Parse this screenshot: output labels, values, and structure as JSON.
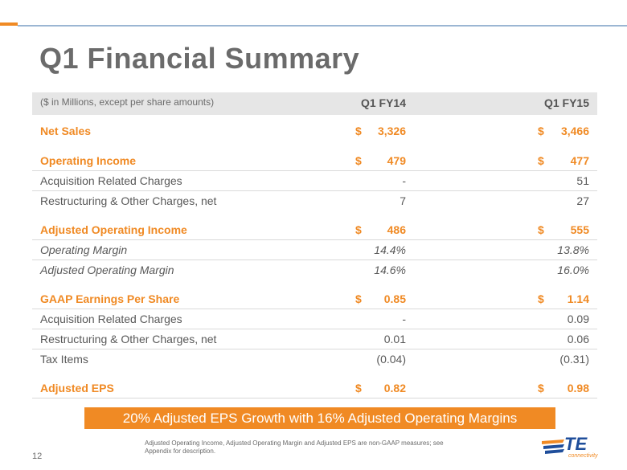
{
  "title": "Q1 Financial Summary",
  "table": {
    "note": "($ in Millions, except per share amounts)",
    "col1": "Q1 FY14",
    "col2": "Q1 FY15",
    "rows": [
      {
        "label": "Net Sales",
        "c1_dollar": "$",
        "c1": "3,326",
        "c2_dollar": "$",
        "c2": "3,466"
      },
      {
        "label": "Operating Income",
        "c1_dollar": "$",
        "c1": "479",
        "c2_dollar": "$",
        "c2": "477"
      },
      {
        "label": "Acquisition Related Charges",
        "c1_dollar": "",
        "c1": "-",
        "c2_dollar": "",
        "c2": "51"
      },
      {
        "label": "Restructuring & Other Charges, net",
        "c1_dollar": "",
        "c1": "7",
        "c2_dollar": "",
        "c2": "27"
      },
      {
        "label": "Adjusted Operating Income",
        "c1_dollar": "$",
        "c1": "486",
        "c2_dollar": "$",
        "c2": "555"
      },
      {
        "label": "Operating Margin",
        "c1_dollar": "",
        "c1": "14.4%",
        "c2_dollar": "",
        "c2": "13.8%"
      },
      {
        "label": "Adjusted Operating Margin",
        "c1_dollar": "",
        "c1": "14.6%",
        "c2_dollar": "",
        "c2": "16.0%"
      },
      {
        "label": "GAAP Earnings Per Share",
        "c1_dollar": "$",
        "c1": "0.85",
        "c2_dollar": "$",
        "c2": "1.14"
      },
      {
        "label": "Acquisition Related Charges",
        "c1_dollar": "",
        "c1": "-",
        "c2_dollar": "",
        "c2": "0.09"
      },
      {
        "label": "Restructuring & Other Charges, net",
        "c1_dollar": "",
        "c1": "0.01",
        "c2_dollar": "",
        "c2": "0.06"
      },
      {
        "label": "Tax Items",
        "c1_dollar": "",
        "c1": "(0.04)",
        "c2_dollar": "",
        "c2": "(0.31)"
      },
      {
        "label": "Adjusted EPS",
        "c1_dollar": "$",
        "c1": "0.82",
        "c2_dollar": "$",
        "c2": "0.98"
      }
    ]
  },
  "callout": "20% Adjusted EPS Growth with 16% Adjusted Operating Margins",
  "page_number": "12",
  "footnote": "Adjusted Operating Income, Adjusted Operating Margin and Adjusted EPS are non-GAAP measures; see Appendix for description.",
  "logo": {
    "name": "te-connectivity-logo",
    "text": "TE",
    "sub": "connectivity"
  },
  "colors": {
    "accent": "#f08a24",
    "title": "#6b6b6b",
    "rule": "#9bb6d3",
    "logo_blue": "#1f4e9b"
  }
}
